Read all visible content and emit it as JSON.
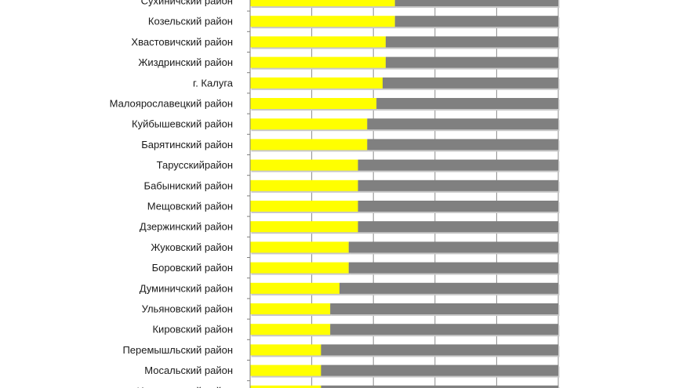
{
  "chart_data": {
    "type": "bar",
    "orientation": "horizontal",
    "stacked": true,
    "percent_stacked": true,
    "title": "",
    "xlabel": "",
    "ylabel": "",
    "xlim": [
      0,
      100
    ],
    "grid": true,
    "legend": "none",
    "categories": [
      "Сухиничский район",
      "Козельский район",
      "Хвастовичский район",
      "Жиздринский район",
      "г. Калуга",
      "Малоярославецкий район",
      "Куйбышевский район",
      "Барятинский район",
      "Тарусскийрайон",
      "Бабыниский район",
      "Мещовский район",
      "Дзержинский район",
      "Жуковский район",
      "Боровский район",
      "Думиничский район",
      "Ульяновский район",
      "Кировский район",
      "Перемышльский район",
      "Мосальский район",
      "Износковский район"
    ],
    "series": [
      {
        "color": "#ffff00",
        "values": [
          47,
          47,
          44,
          44,
          43,
          41,
          38,
          38,
          35,
          35,
          35,
          35,
          32,
          32,
          29,
          26,
          26,
          23,
          23,
          23
        ]
      },
      {
        "color": "#808080",
        "values": [
          53,
          53,
          56,
          56,
          57,
          59,
          62,
          62,
          65,
          65,
          65,
          65,
          68,
          68,
          71,
          74,
          74,
          77,
          77,
          77
        ]
      }
    ]
  }
}
